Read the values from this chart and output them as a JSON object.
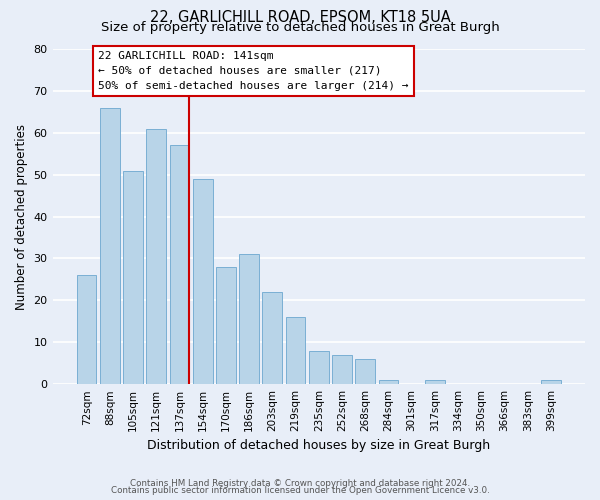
{
  "title1": "22, GARLICHILL ROAD, EPSOM, KT18 5UA",
  "title2": "Size of property relative to detached houses in Great Burgh",
  "xlabel": "Distribution of detached houses by size in Great Burgh",
  "ylabel": "Number of detached properties",
  "bar_labels": [
    "72sqm",
    "88sqm",
    "105sqm",
    "121sqm",
    "137sqm",
    "154sqm",
    "170sqm",
    "186sqm",
    "203sqm",
    "219sqm",
    "235sqm",
    "252sqm",
    "268sqm",
    "284sqm",
    "301sqm",
    "317sqm",
    "334sqm",
    "350sqm",
    "366sqm",
    "383sqm",
    "399sqm"
  ],
  "bar_values": [
    26,
    66,
    51,
    61,
    57,
    49,
    28,
    31,
    22,
    16,
    8,
    7,
    6,
    1,
    0,
    1,
    0,
    0,
    0,
    0,
    1
  ],
  "bar_color": "#b8d4e8",
  "bar_edge_color": "#7aafd4",
  "vline_x_index": 4,
  "vline_color": "#cc0000",
  "annotation_text": "22 GARLICHILL ROAD: 141sqm\n← 50% of detached houses are smaller (217)\n50% of semi-detached houses are larger (214) →",
  "annotation_box_color": "#ffffff",
  "annotation_box_edge": "#cc0000",
  "ylim": [
    0,
    80
  ],
  "yticks": [
    0,
    10,
    20,
    30,
    40,
    50,
    60,
    70,
    80
  ],
  "footer1": "Contains HM Land Registry data © Crown copyright and database right 2024.",
  "footer2": "Contains public sector information licensed under the Open Government Licence v3.0.",
  "bg_color": "#e8eef8",
  "grid_color": "#ffffff",
  "title1_fontsize": 10.5,
  "title2_fontsize": 9.5
}
